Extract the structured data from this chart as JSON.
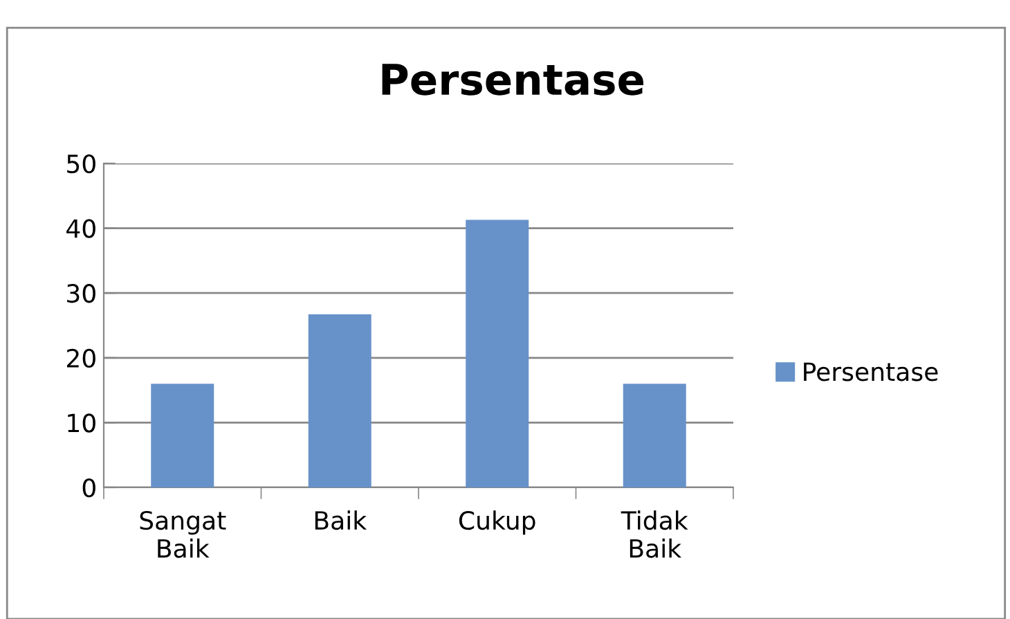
{
  "chart_data": {
    "type": "bar",
    "title": "Persentase",
    "categories": [
      "Sangat Baik",
      "Baik",
      "Cukup",
      "Tidak Baik"
    ],
    "series": [
      {
        "name": "Persentase",
        "color": "#6792c9",
        "values": [
          16,
          26.7,
          41.3,
          16
        ]
      }
    ],
    "ylim": [
      0,
      50
    ],
    "yticks": [
      0,
      10,
      20,
      30,
      40,
      50
    ],
    "grid": "y",
    "legend": "right"
  }
}
